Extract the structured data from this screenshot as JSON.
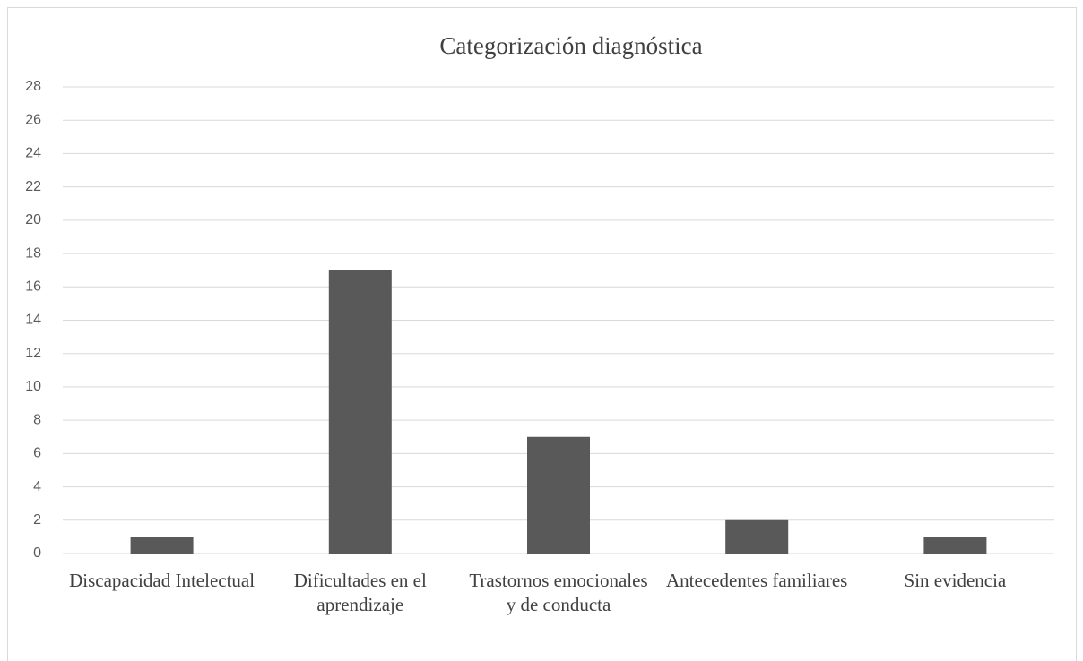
{
  "chart_data": {
    "type": "bar",
    "title": "Categorización diagnóstica",
    "categories": [
      "Discapacidad Intelectual",
      "Dificultades en el aprendizaje",
      "Trastornos emocionales y de conducta",
      "Antecedentes familiares",
      "Sin evidencia"
    ],
    "values": [
      1,
      17,
      7,
      2,
      1
    ],
    "color": "#595959",
    "ylim": [
      0,
      28
    ],
    "yticks": [
      0,
      2,
      4,
      6,
      8,
      10,
      12,
      14,
      16,
      18,
      20,
      22,
      24,
      26,
      28
    ],
    "grid": true
  }
}
